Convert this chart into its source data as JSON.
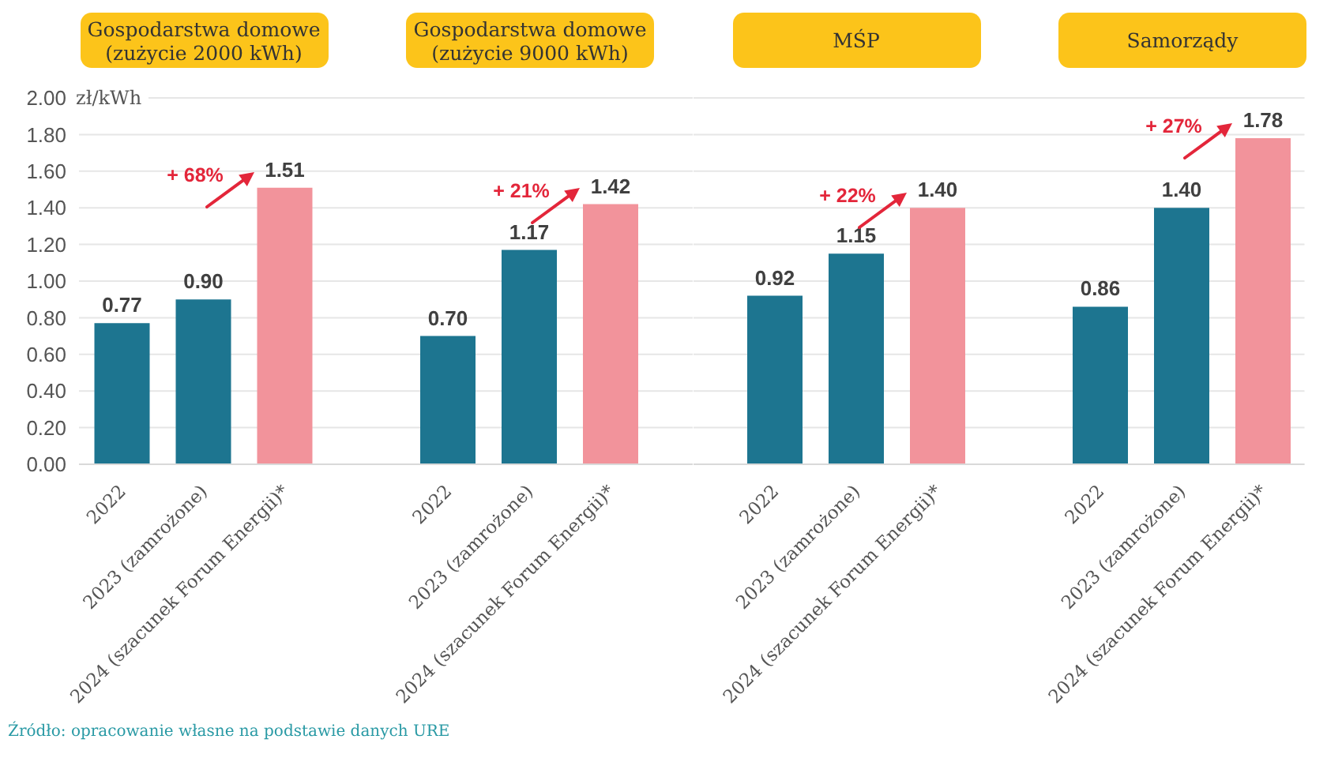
{
  "chart_data": [
    {
      "type": "bar",
      "title": "Gospodarstwa domowe (zużycie 2000 kWh)",
      "ylabel": "zł/kWh",
      "categories": [
        "2022",
        "2023 (zamrożone)",
        "2024 (szacunek Forum Energii)*"
      ],
      "values": [
        0.77,
        0.9,
        1.51
      ],
      "colors": [
        "#1d7590",
        "#1d7590",
        "#f2939b"
      ],
      "value_labels": [
        "0.77",
        "0.90",
        "1.51"
      ],
      "ylim": [
        0,
        2
      ],
      "yticks": [
        {
          "value": 0,
          "label": "0.00"
        },
        {
          "value": 0.2,
          "label": "0.20"
        },
        {
          "value": 0.4,
          "label": "0.40"
        },
        {
          "value": 0.6,
          "label": "0.60"
        },
        {
          "value": 0.8,
          "label": "0.80"
        },
        {
          "value": 1,
          "label": "1.00"
        },
        {
          "value": 1.2,
          "label": "1.20"
        },
        {
          "value": 1.4,
          "label": "1.40"
        },
        {
          "value": 1.6,
          "label": "1.60"
        },
        {
          "value": 1.8,
          "label": "1.80"
        },
        {
          "value": 2,
          "label": "2.00"
        }
      ],
      "grid": "y",
      "annotations": [
        "+ 68%",
        "Źródło: opracowanie własne na podstawie danych URE"
      ]
    },
    {
      "type": "bar",
      "title": "Gospodarstwa domowe (zużycie 9000 kWh)",
      "categories": [
        "2022",
        "2023 (zamrożone)",
        "2024 (szacunek Forum Energii)*"
      ],
      "values": [
        0.7,
        1.17,
        1.42
      ],
      "colors": [
        "#1d7590",
        "#1d7590",
        "#f2939b"
      ],
      "value_labels": [
        "0.70",
        "1.17",
        "1.42"
      ],
      "ylim": [
        0,
        2
      ],
      "yticks": [
        0,
        0.2,
        0.4,
        0.6,
        0.8,
        1,
        1.2,
        1.4,
        1.6,
        1.8,
        2
      ],
      "grid": "y",
      "tick_labels": "x",
      "annotations": [
        "+ 21%"
      ]
    },
    {
      "type": "bar",
      "title": "MŚP",
      "categories": [
        "2022",
        "2023 (zamrożone)",
        "2024 (szacunek Forum Energii)*"
      ],
      "values": [
        0.92,
        1.15,
        1.4
      ],
      "colors": [
        "#1d7590",
        "#1d7590",
        "#f2939b"
      ],
      "value_labels": [
        "0.92",
        "1.15",
        "1.40"
      ],
      "ylim": [
        0,
        2
      ],
      "yticks": [
        0,
        0.2,
        0.4,
        0.6,
        0.8,
        1,
        1.2,
        1.4,
        1.6,
        1.8,
        2
      ],
      "grid": "y",
      "tick_labels": "x",
      "annotations": [
        "+ 22%"
      ]
    },
    {
      "type": "bar",
      "title": "Samorządy",
      "categories": [
        "2022",
        "2023 (zamrożone)",
        "2024 (szacunek Forum Energii)*"
      ],
      "values": [
        0.86,
        1.4,
        1.78
      ],
      "colors": [
        "#1d7590",
        "#1d7590",
        "#f2939b"
      ],
      "value_labels": [
        "0.86",
        "1.40",
        "1.78"
      ],
      "ylim": [
        0,
        2
      ],
      "yticks": [
        0,
        0.2,
        0.4,
        0.6,
        0.8,
        1,
        1.2,
        1.4,
        1.6,
        1.8,
        2
      ],
      "grid": "y",
      "tick_labels": "x",
      "annotations": [
        "+ 27%"
      ]
    }
  ]
}
